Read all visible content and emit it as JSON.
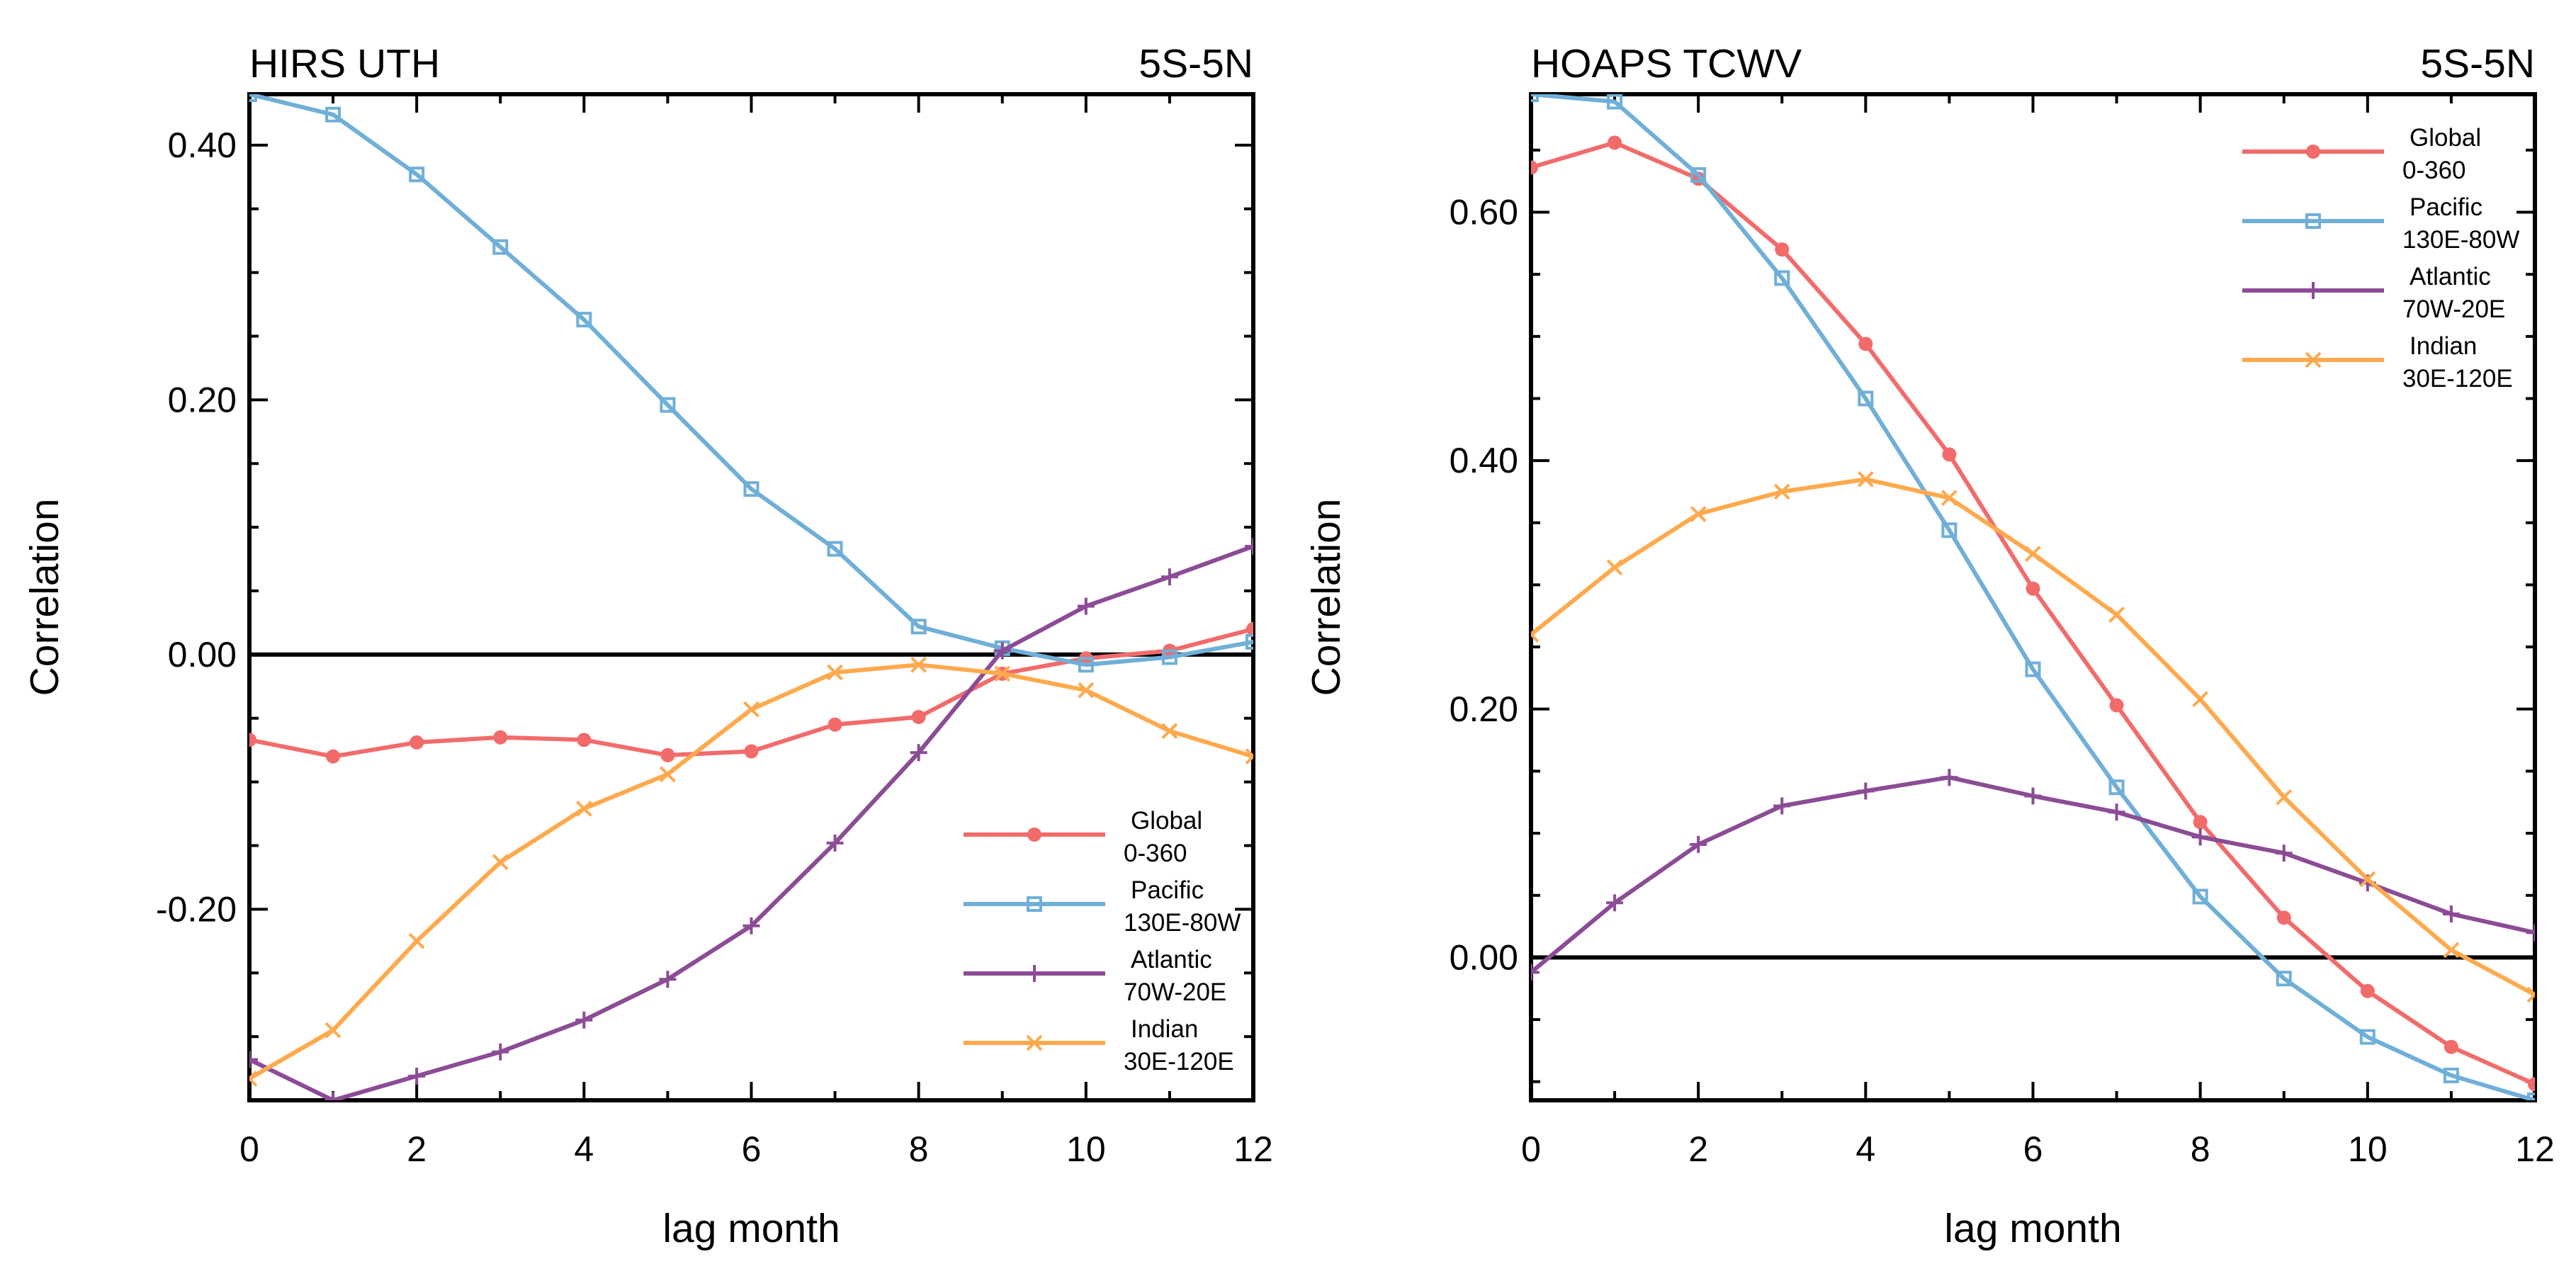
{
  "chart_data": [
    {
      "type": "line",
      "title": "HIRS UTH",
      "region": "5S-5N",
      "xlabel": "lag month",
      "ylabel": "Correlation",
      "xlim": [
        0,
        12
      ],
      "ylim": [
        -0.35,
        0.44
      ],
      "x_ticks": [
        0,
        2,
        4,
        6,
        8,
        10,
        12
      ],
      "x_tick_labels": [
        "0",
        "2",
        "4",
        "6",
        "8",
        "10",
        "12"
      ],
      "y_ticks": [
        -0.2,
        0.0,
        0.2,
        0.4
      ],
      "y_tick_labels": [
        "-0.20",
        "0.00",
        "0.20",
        "0.40"
      ],
      "zero_line": true,
      "legend_position": "bottom-right",
      "x": [
        0,
        1,
        2,
        3,
        4,
        5,
        6,
        7,
        8,
        9,
        10,
        11,
        12
      ],
      "series": [
        {
          "key": "global",
          "name": "Global",
          "region": "0-360",
          "color": "#F26B6B",
          "marker": "dot",
          "values": [
            -0.067,
            -0.08,
            -0.069,
            -0.065,
            -0.067,
            -0.079,
            -0.076,
            -0.055,
            -0.049,
            -0.015,
            -0.003,
            0.003,
            0.02
          ]
        },
        {
          "key": "pacific",
          "name": "Pacific",
          "region": "130E-80W",
          "color": "#6FAFD8",
          "marker": "square",
          "values": [
            0.44,
            0.424,
            0.377,
            0.32,
            0.263,
            0.196,
            0.13,
            0.083,
            0.022,
            0.005,
            -0.008,
            -0.002,
            0.01
          ]
        },
        {
          "key": "atlantic",
          "name": "Atlantic",
          "region": "70W-20E",
          "color": "#8B4C95",
          "marker": "plus",
          "values": [
            -0.318,
            -0.35,
            -0.331,
            -0.312,
            -0.287,
            -0.255,
            -0.213,
            -0.148,
            -0.077,
            0.003,
            0.038,
            0.061,
            0.085
          ]
        },
        {
          "key": "indian",
          "name": "Indian",
          "region": "30E-120E",
          "color": "#FFA94D",
          "marker": "cross",
          "values": [
            -0.333,
            -0.295,
            -0.225,
            -0.163,
            -0.121,
            -0.094,
            -0.043,
            -0.014,
            -0.008,
            -0.015,
            -0.028,
            -0.06,
            -0.08
          ]
        }
      ]
    },
    {
      "type": "line",
      "title": "HOAPS TCWV",
      "region": "5S-5N",
      "xlabel": "lag month",
      "ylabel": "Correlation",
      "xlim": [
        0,
        12
      ],
      "ylim": [
        -0.115,
        0.695
      ],
      "x_ticks": [
        0,
        2,
        4,
        6,
        8,
        10,
        12
      ],
      "x_tick_labels": [
        "0",
        "2",
        "4",
        "6",
        "8",
        "10",
        "12"
      ],
      "y_ticks": [
        0.0,
        0.2,
        0.4,
        0.6
      ],
      "y_tick_labels": [
        "0.00",
        "0.20",
        "0.40",
        "0.60"
      ],
      "zero_line": true,
      "legend_position": "top-right",
      "x": [
        0,
        1,
        2,
        3,
        4,
        5,
        6,
        7,
        8,
        9,
        10,
        11,
        12
      ],
      "series": [
        {
          "key": "global",
          "name": "Global",
          "region": "0-360",
          "color": "#F26B6B",
          "marker": "dot",
          "values": [
            0.636,
            0.656,
            0.627,
            0.57,
            0.494,
            0.405,
            0.297,
            0.203,
            0.109,
            0.032,
            -0.027,
            -0.072,
            -0.102
          ]
        },
        {
          "key": "pacific",
          "name": "Pacific",
          "region": "130E-80W",
          "color": "#6FAFD8",
          "marker": "square",
          "values": [
            0.695,
            0.689,
            0.63,
            0.547,
            0.45,
            0.344,
            0.232,
            0.137,
            0.049,
            -0.017,
            -0.064,
            -0.095,
            -0.115
          ]
        },
        {
          "key": "atlantic",
          "name": "Atlantic",
          "region": "70W-20E",
          "color": "#8B4C95",
          "marker": "plus",
          "values": [
            -0.012,
            0.044,
            0.091,
            0.122,
            0.134,
            0.145,
            0.13,
            0.117,
            0.097,
            0.084,
            0.06,
            0.035,
            0.02
          ]
        },
        {
          "key": "indian",
          "name": "Indian",
          "region": "30E-120E",
          "color": "#FFA94D",
          "marker": "cross",
          "values": [
            0.26,
            0.314,
            0.357,
            0.375,
            0.385,
            0.37,
            0.325,
            0.276,
            0.208,
            0.129,
            0.063,
            0.006,
            -0.03
          ]
        }
      ]
    }
  ]
}
